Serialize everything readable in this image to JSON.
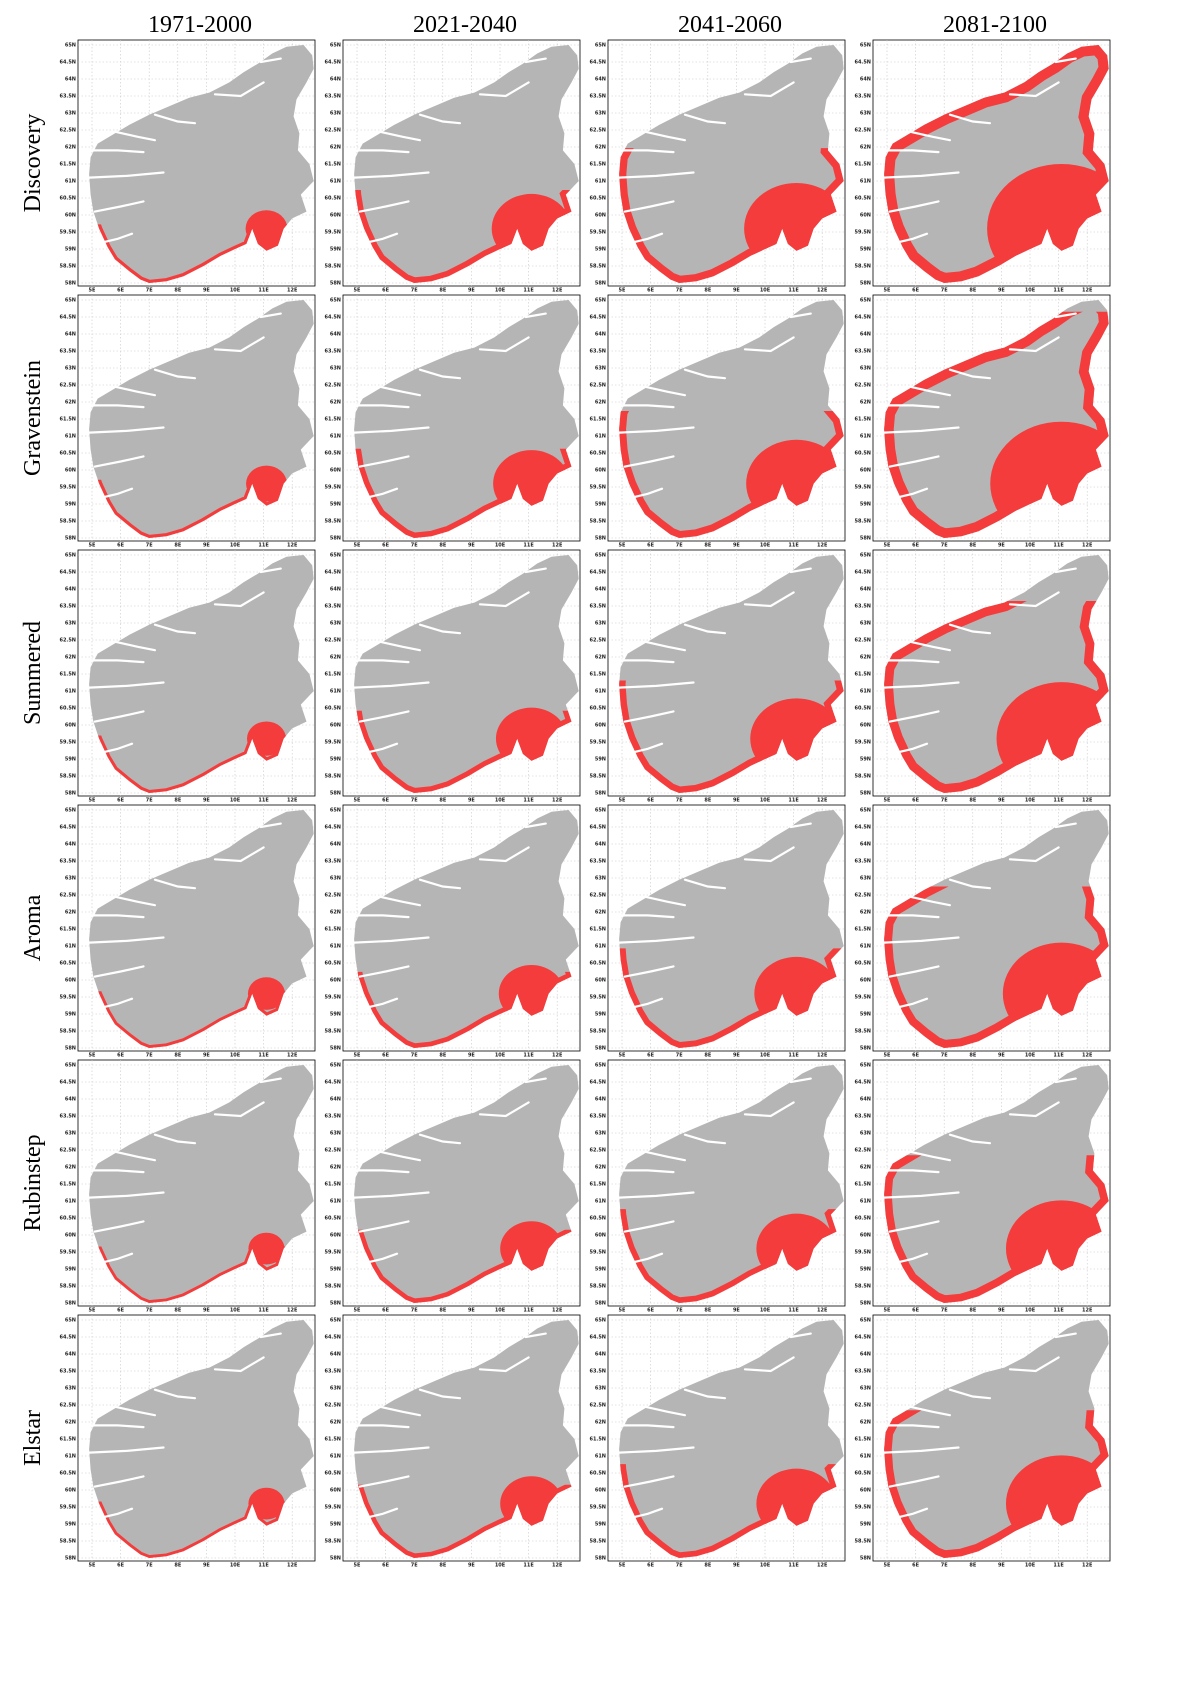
{
  "columns": [
    "1971-2000",
    "2021-2040",
    "2041-2060",
    "2081-2100"
  ],
  "rows": [
    "Discovery",
    "Gravenstein",
    "Summered",
    "Aroma",
    "Rubinstep",
    "Elstar"
  ],
  "lat_ticks": [
    "65N",
    "64.5N",
    "64N",
    "63.5N",
    "63N",
    "62.5N",
    "62N",
    "61.5N",
    "61N",
    "60.5N",
    "60N",
    "59.5N",
    "59N",
    "58.5N",
    "58N"
  ],
  "lon_ticks": [
    "5E",
    "6E",
    "7E",
    "8E",
    "9E",
    "10E",
    "11E",
    "12E"
  ]
}
